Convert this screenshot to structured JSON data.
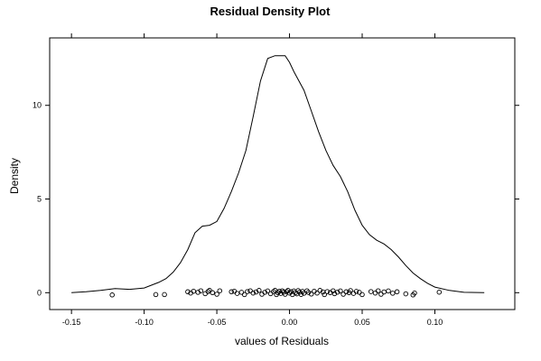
{
  "chart_data": {
    "type": "density",
    "title": "Residual Density Plot",
    "xlabel": "values of Residuals",
    "ylabel": "Density",
    "xlim": [
      -0.165,
      0.155
    ],
    "ylim": [
      -0.9,
      13.6
    ],
    "x_ticks": [
      {
        "value": -0.15,
        "label": "-0.15"
      },
      {
        "value": -0.1,
        "label": "-0.10"
      },
      {
        "value": -0.05,
        "label": "-0.05"
      },
      {
        "value": 0.0,
        "label": "0.00"
      },
      {
        "value": 0.05,
        "label": "0.05"
      },
      {
        "value": 0.1,
        "label": "0.10"
      }
    ],
    "y_ticks": [
      {
        "value": 0,
        "label": "0"
      },
      {
        "value": 5,
        "label": "5"
      },
      {
        "value": 10,
        "label": "10"
      }
    ],
    "density_curve": {
      "x": [
        -0.15,
        -0.14,
        -0.13,
        -0.12,
        -0.11,
        -0.1,
        -0.09,
        -0.085,
        -0.08,
        -0.075,
        -0.07,
        -0.065,
        -0.06,
        -0.055,
        -0.05,
        -0.045,
        -0.04,
        -0.035,
        -0.03,
        -0.025,
        -0.02,
        -0.015,
        -0.01,
        -0.005,
        -0.003,
        0.0,
        0.003,
        0.01,
        0.015,
        0.02,
        0.025,
        0.03,
        0.035,
        0.04,
        0.045,
        0.05,
        0.055,
        0.06,
        0.065,
        0.07,
        0.075,
        0.08,
        0.085,
        0.09,
        0.095,
        0.1,
        0.11,
        0.12,
        0.134
      ],
      "y": [
        0.0,
        0.05,
        0.12,
        0.22,
        0.18,
        0.25,
        0.55,
        0.75,
        1.1,
        1.6,
        2.3,
        3.2,
        3.55,
        3.6,
        3.8,
        4.5,
        5.4,
        6.4,
        7.6,
        9.4,
        11.3,
        12.5,
        12.65,
        12.65,
        12.65,
        12.3,
        11.8,
        10.8,
        9.7,
        8.6,
        7.6,
        6.8,
        6.2,
        5.4,
        4.4,
        3.6,
        3.1,
        2.8,
        2.6,
        2.3,
        1.9,
        1.45,
        1.05,
        0.75,
        0.5,
        0.3,
        0.12,
        0.02,
        0.0
      ]
    },
    "rug_points": [
      {
        "x": -0.122,
        "y": -0.12
      },
      {
        "x": -0.092,
        "y": -0.1
      },
      {
        "x": -0.086,
        "y": -0.1
      },
      {
        "x": -0.07,
        "y": 0.05
      },
      {
        "x": -0.068,
        "y": -0.02
      },
      {
        "x": -0.066,
        "y": 0.08
      },
      {
        "x": -0.063,
        "y": 0.02
      },
      {
        "x": -0.061,
        "y": 0.1
      },
      {
        "x": -0.058,
        "y": -0.05
      },
      {
        "x": -0.056,
        "y": 0.06
      },
      {
        "x": -0.055,
        "y": 0.12
      },
      {
        "x": -0.053,
        "y": 0.0
      },
      {
        "x": -0.05,
        "y": -0.08
      },
      {
        "x": -0.048,
        "y": 0.1
      },
      {
        "x": -0.04,
        "y": 0.05
      },
      {
        "x": -0.038,
        "y": 0.08
      },
      {
        "x": -0.036,
        "y": -0.04
      },
      {
        "x": -0.033,
        "y": 0.02
      },
      {
        "x": -0.031,
        "y": -0.1
      },
      {
        "x": -0.029,
        "y": 0.06
      },
      {
        "x": -0.027,
        "y": 0.1
      },
      {
        "x": -0.025,
        "y": -0.02
      },
      {
        "x": -0.023,
        "y": 0.04
      },
      {
        "x": -0.021,
        "y": 0.12
      },
      {
        "x": -0.019,
        "y": -0.08
      },
      {
        "x": -0.017,
        "y": 0.02
      },
      {
        "x": -0.015,
        "y": 0.09
      },
      {
        "x": -0.013,
        "y": -0.05
      },
      {
        "x": -0.011,
        "y": 0.06
      },
      {
        "x": -0.01,
        "y": 0.12
      },
      {
        "x": -0.009,
        "y": -0.1
      },
      {
        "x": -0.008,
        "y": 0.0
      },
      {
        "x": -0.007,
        "y": 0.08
      },
      {
        "x": -0.006,
        "y": -0.04
      },
      {
        "x": -0.005,
        "y": 0.1
      },
      {
        "x": -0.004,
        "y": 0.03
      },
      {
        "x": -0.003,
        "y": -0.08
      },
      {
        "x": -0.002,
        "y": 0.06
      },
      {
        "x": -0.001,
        "y": 0.12
      },
      {
        "x": 0.0,
        "y": -0.02
      },
      {
        "x": 0.001,
        "y": 0.05
      },
      {
        "x": 0.002,
        "y": -0.1
      },
      {
        "x": 0.003,
        "y": 0.09
      },
      {
        "x": 0.004,
        "y": 0.0
      },
      {
        "x": 0.005,
        "y": -0.06
      },
      {
        "x": 0.006,
        "y": 0.11
      },
      {
        "x": 0.007,
        "y": 0.03
      },
      {
        "x": 0.008,
        "y": -0.09
      },
      {
        "x": 0.009,
        "y": 0.07
      },
      {
        "x": 0.01,
        "y": -0.03
      },
      {
        "x": 0.012,
        "y": 0.1
      },
      {
        "x": 0.013,
        "y": 0.01
      },
      {
        "x": 0.015,
        "y": -0.07
      },
      {
        "x": 0.017,
        "y": 0.08
      },
      {
        "x": 0.019,
        "y": -0.02
      },
      {
        "x": 0.021,
        "y": 0.12
      },
      {
        "x": 0.023,
        "y": 0.04
      },
      {
        "x": 0.024,
        "y": -0.1
      },
      {
        "x": 0.026,
        "y": 0.06
      },
      {
        "x": 0.028,
        "y": 0.0
      },
      {
        "x": 0.03,
        "y": 0.1
      },
      {
        "x": 0.031,
        "y": -0.05
      },
      {
        "x": 0.033,
        "y": 0.03
      },
      {
        "x": 0.035,
        "y": 0.09
      },
      {
        "x": 0.037,
        "y": -0.08
      },
      {
        "x": 0.039,
        "y": 0.05
      },
      {
        "x": 0.041,
        "y": 0.0
      },
      {
        "x": 0.042,
        "y": 0.11
      },
      {
        "x": 0.044,
        "y": -0.04
      },
      {
        "x": 0.046,
        "y": 0.07
      },
      {
        "x": 0.048,
        "y": 0.02
      },
      {
        "x": 0.05,
        "y": -0.1
      },
      {
        "x": 0.056,
        "y": 0.06
      },
      {
        "x": 0.059,
        "y": -0.02
      },
      {
        "x": 0.061,
        "y": 0.1
      },
      {
        "x": 0.063,
        "y": -0.08
      },
      {
        "x": 0.065,
        "y": 0.04
      },
      {
        "x": 0.068,
        "y": 0.09
      },
      {
        "x": 0.071,
        "y": -0.03
      },
      {
        "x": 0.074,
        "y": 0.05
      },
      {
        "x": 0.08,
        "y": -0.06
      },
      {
        "x": 0.085,
        "y": -0.12
      },
      {
        "x": 0.086,
        "y": -0.02
      },
      {
        "x": 0.103,
        "y": 0.03
      }
    ]
  },
  "style": {
    "line_color": "#000000",
    "background": "#ffffff"
  }
}
